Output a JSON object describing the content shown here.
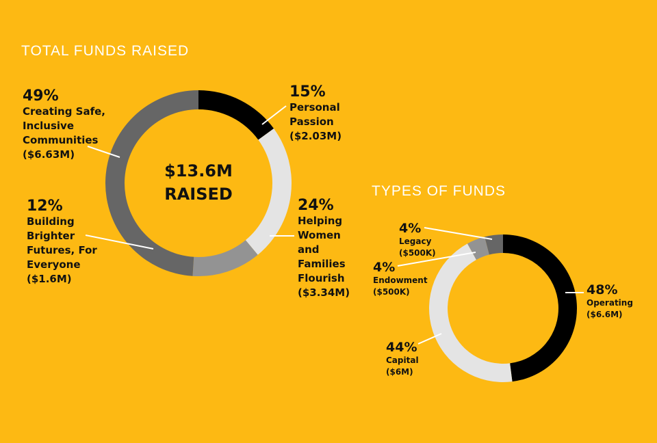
{
  "colors": {
    "background": "#FDB913",
    "black": "#000000",
    "light_gray": "#E4E4E4",
    "mid_gray": "#939393",
    "dark_gray": "#666666",
    "leader": "#FFFFFF"
  },
  "titles": {
    "total": "TOTAL FUNDS RAISED",
    "types": "TYPES OF FUNDS"
  },
  "center": {
    "amount": "$13.6M",
    "label": "RAISED"
  },
  "chart_data": [
    {
      "type": "pie",
      "title": "TOTAL FUNDS RAISED",
      "center_text": "$13.6M RAISED",
      "categories": [
        "Personal Passion",
        "Helping Women and Families Flourish",
        "Building Brighter Futures, For Everyone",
        "Creating Safe, Inclusive Communities"
      ],
      "values": [
        15,
        24,
        12,
        49
      ],
      "amounts": [
        "$2.03M",
        "$3.34M",
        "$1.6M",
        "$6.63M"
      ],
      "colors": [
        "#000000",
        "#E4E4E4",
        "#939393",
        "#666666"
      ]
    },
    {
      "type": "pie",
      "title": "TYPES OF FUNDS",
      "categories": [
        "Operating",
        "Capital",
        "Endowment",
        "Legacy"
      ],
      "values": [
        48,
        44,
        4,
        4
      ],
      "amounts": [
        "$6.6M",
        "$6M",
        "$500K",
        "$500K"
      ],
      "colors": [
        "#000000",
        "#E4E4E4",
        "#939393",
        "#666666"
      ]
    }
  ],
  "labels": {
    "total": [
      {
        "pct": "15%",
        "l1": "Personal",
        "l2": "Passion",
        "amt": "($2.03M)"
      },
      {
        "pct": "24%",
        "l1": "Helping",
        "l2": "Women",
        "l3": "and",
        "l4": "Families",
        "l5": "Flourish",
        "amt": "($3.34M)"
      },
      {
        "pct": "12%",
        "l1": "Building",
        "l2": "Brighter",
        "l3": "Futures, For",
        "l4": "Everyone",
        "amt": "($1.6M)"
      },
      {
        "pct": "49%",
        "l1": "Creating Safe,",
        "l2": "Inclusive",
        "l3": "Communities",
        "amt": "($6.63M)"
      }
    ],
    "types": [
      {
        "pct": "48%",
        "l1": "Operating",
        "amt": "($6.6M)"
      },
      {
        "pct": "44%",
        "l1": "Capital",
        "amt": "($6M)"
      },
      {
        "pct": "4%",
        "l1": "Endowment",
        "amt": "($500K)"
      },
      {
        "pct": "4%",
        "l1": "Legacy",
        "amt": "($500K)"
      }
    ]
  }
}
